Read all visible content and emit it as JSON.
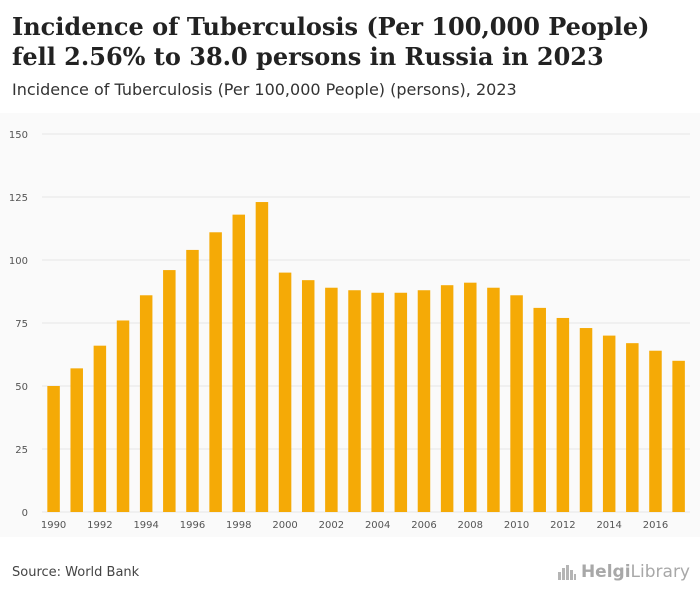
{
  "header": {
    "title": "Incidence of Tuberculosis (Per 100,000 People) fell 2.56% to 38.0 persons in Russia in 2023",
    "subtitle": "Incidence of Tuberculosis (Per 100,000 People) (persons), 2023"
  },
  "footer": {
    "source": "Source: World Bank",
    "logo_bold": "Helgi",
    "logo_light": "Library"
  },
  "colors": {
    "bar": "#f5aa06",
    "grid": "#e6e6e6",
    "plot_background": "#fafafa"
  },
  "chart_data": {
    "type": "bar",
    "categories": [
      "1990",
      "1991",
      "1992",
      "1993",
      "1994",
      "1995",
      "1996",
      "1997",
      "1998",
      "1999",
      "2000",
      "2001",
      "2002",
      "2003",
      "2004",
      "2005",
      "2006",
      "2007",
      "2008",
      "2009",
      "2010",
      "2011",
      "2012",
      "2013",
      "2014",
      "2015",
      "2016",
      "2017"
    ],
    "values": [
      50,
      57,
      66,
      76,
      86,
      96,
      104,
      111,
      118,
      123,
      95,
      92,
      89,
      88,
      87,
      87,
      88,
      90,
      91,
      89,
      86,
      81,
      77,
      73,
      70,
      67,
      64,
      60
    ],
    "x_tick_labels": [
      "1990",
      "1992",
      "1994",
      "1996",
      "1998",
      "2000",
      "2002",
      "2004",
      "2006",
      "2008",
      "2010",
      "2012",
      "2014",
      "2016"
    ],
    "y_ticks": [
      0,
      25,
      50,
      75,
      100,
      125,
      150
    ],
    "ylim": [
      0,
      150
    ],
    "xlabel": "",
    "ylabel": "",
    "grid": true,
    "legend": "none"
  }
}
